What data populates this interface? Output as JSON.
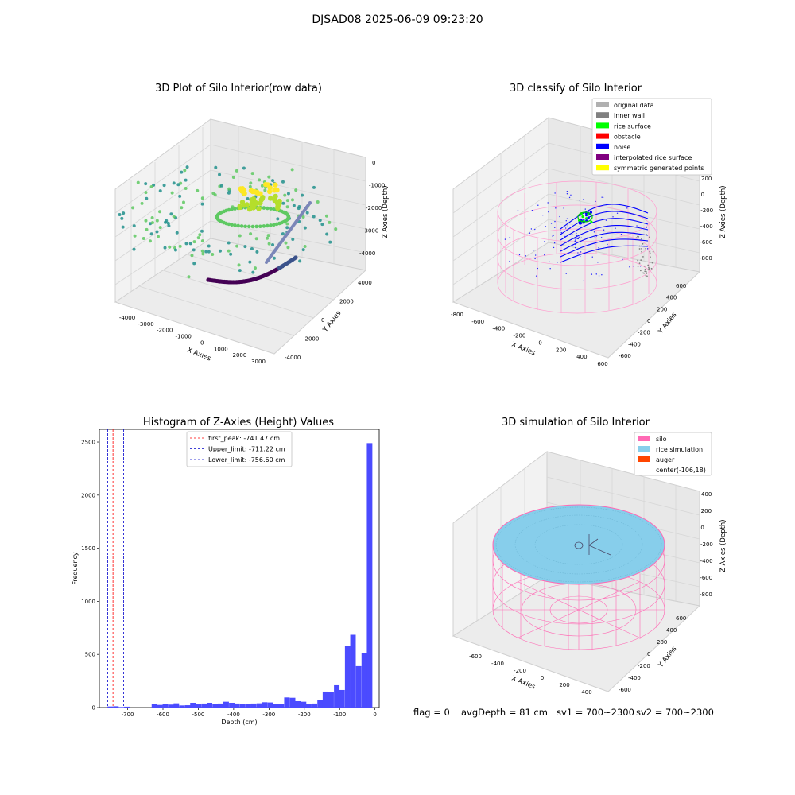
{
  "suptitle": "DJSAD08 2025-06-09 09:23:20",
  "chart_data": [
    {
      "type": "scatter",
      "title": "3D Plot of Silo Interior(row data)",
      "xlabel": "X Axies",
      "ylabel": "Y Axies",
      "zlabel": "Z Axies (Depth)",
      "x_ticks": [
        "-4000",
        "-3000",
        "-2000",
        "-1000",
        "0",
        "1000",
        "2000",
        "3000"
      ],
      "y_ticks": [
        "-4000",
        "-2000",
        "0",
        "2000",
        "4000"
      ],
      "z_ticks": [
        "-4000",
        "-3000",
        "-2000",
        "-1000",
        "0"
      ],
      "colormap": "viridis",
      "grid": true
    },
    {
      "type": "scatter",
      "title": "3D classify of Silo Interior",
      "xlabel": "X Axies",
      "ylabel": "Y Axies",
      "zlabel": "Z Axies (Depth)",
      "x_ticks": [
        "-800",
        "-600",
        "-400",
        "-200",
        "0",
        "200",
        "400",
        "600"
      ],
      "y_ticks": [
        "-600",
        "-400",
        "-200",
        "0",
        "200",
        "400",
        "600"
      ],
      "z_ticks": [
        "-800",
        "-600",
        "-400",
        "-200",
        "0",
        "200"
      ],
      "legend": [
        {
          "label": "original data",
          "color": "#b0b0b0"
        },
        {
          "label": "inner wall",
          "color": "#808080"
        },
        {
          "label": "rice surface",
          "color": "#00ff00"
        },
        {
          "label": "obstacle",
          "color": "#ff0000"
        },
        {
          "label": "noise",
          "color": "#0000ff"
        },
        {
          "label": "interpolated rice surface",
          "color": "#800080"
        },
        {
          "label": "symmetric generated points",
          "color": "#ffff00"
        }
      ],
      "legend_position": "top-right",
      "grid": true
    },
    {
      "type": "bar",
      "title": "Histogram of Z-Axies (Height) Values",
      "xlabel": "Depth (cm)",
      "ylabel": "Frequency",
      "xlim": [
        -780,
        12
      ],
      "ylim": [
        0,
        2620
      ],
      "x_ticks": [
        -700,
        -600,
        -500,
        -400,
        -300,
        -200,
        -100,
        0
      ],
      "y_ticks": [
        0,
        500,
        1000,
        1500,
        2000,
        2500
      ],
      "bin_width": 15.6,
      "bins": [
        {
          "x": -757,
          "value": 10
        },
        {
          "x": -741,
          "value": 12
        },
        {
          "x": -725,
          "value": 5
        },
        {
          "x": -710,
          "value": 8
        },
        {
          "x": -632,
          "value": 32
        },
        {
          "x": -616,
          "value": 25
        },
        {
          "x": -601,
          "value": 35
        },
        {
          "x": -585,
          "value": 28
        },
        {
          "x": -570,
          "value": 40
        },
        {
          "x": -554,
          "value": 20
        },
        {
          "x": -538,
          "value": 22
        },
        {
          "x": -523,
          "value": 45
        },
        {
          "x": -507,
          "value": 30
        },
        {
          "x": -491,
          "value": 38
        },
        {
          "x": -476,
          "value": 45
        },
        {
          "x": -460,
          "value": 30
        },
        {
          "x": -445,
          "value": 38
        },
        {
          "x": -429,
          "value": 55
        },
        {
          "x": -413,
          "value": 45
        },
        {
          "x": -398,
          "value": 38
        },
        {
          "x": -382,
          "value": 35
        },
        {
          "x": -366,
          "value": 30
        },
        {
          "x": -351,
          "value": 38
        },
        {
          "x": -335,
          "value": 40
        },
        {
          "x": -320,
          "value": 50
        },
        {
          "x": -304,
          "value": 48
        },
        {
          "x": -288,
          "value": 30
        },
        {
          "x": -273,
          "value": 35
        },
        {
          "x": -257,
          "value": 95
        },
        {
          "x": -241,
          "value": 92
        },
        {
          "x": -226,
          "value": 60
        },
        {
          "x": -210,
          "value": 55
        },
        {
          "x": -195,
          "value": 35
        },
        {
          "x": -179,
          "value": 38
        },
        {
          "x": -163,
          "value": 72
        },
        {
          "x": -148,
          "value": 150
        },
        {
          "x": -132,
          "value": 145
        },
        {
          "x": -116,
          "value": 210
        },
        {
          "x": -101,
          "value": 165
        },
        {
          "x": -85,
          "value": 580
        },
        {
          "x": -70,
          "value": 685
        },
        {
          "x": -54,
          "value": 390
        },
        {
          "x": -38,
          "value": 510
        },
        {
          "x": -23,
          "value": 2490
        }
      ],
      "color": "#4b4bff",
      "vlines": [
        {
          "label": "first_peak: -741.47 cm",
          "x": -741.47,
          "color": "#ff0000"
        },
        {
          "label": "Upper_limit: -711.22 cm",
          "x": -711.22,
          "color": "#0000cc"
        },
        {
          "label": "Lower_limit: -756.60 cm",
          "x": -756.6,
          "color": "#0000cc"
        }
      ],
      "legend_position": "top-center"
    },
    {
      "type": "surface",
      "title": "3D simulation of Silo Interior",
      "xlabel": "X Axies",
      "ylabel": "Y Axies",
      "zlabel": "Z Axies (Depth)",
      "x_ticks": [
        "-600",
        "-400",
        "-200",
        "0",
        "200",
        "400"
      ],
      "y_ticks": [
        "-600",
        "-400",
        "-200",
        "0",
        "200",
        "400",
        "600"
      ],
      "z_ticks": [
        "-800",
        "-600",
        "-400",
        "-200",
        "0",
        "200",
        "400"
      ],
      "legend": [
        {
          "label": "silo",
          "color": "#ff69b4"
        },
        {
          "label": "rice simulation",
          "color": "#87ceeb"
        },
        {
          "label": "auger",
          "color": "#ff4500"
        },
        {
          "label": "center(-106,18)",
          "color": ""
        }
      ],
      "legend_position": "top-right"
    }
  ],
  "status": {
    "flag": "flag = 0",
    "avg_depth": "avgDepth = 81 cm",
    "sv1": "sv1 = 700~2300",
    "sv2": "sv2 = 700~2300"
  }
}
